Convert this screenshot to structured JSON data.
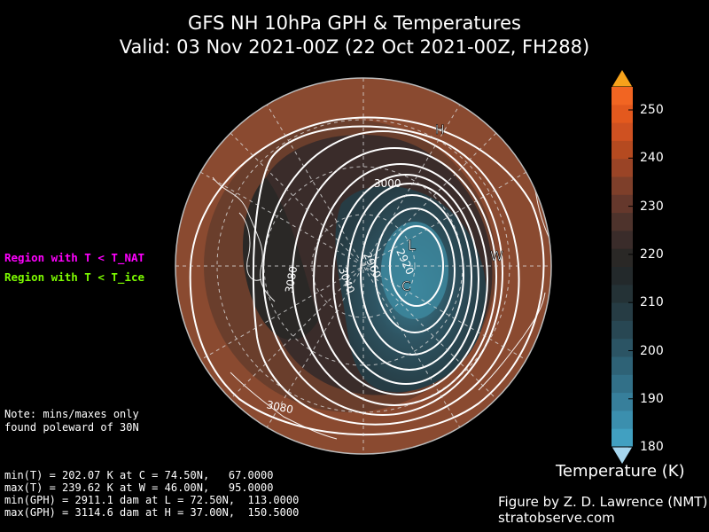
{
  "title_line1": "GFS NH 10hPa GPH & Temperatures",
  "title_line2": "Valid: 03 Nov 2021-00Z  (22 Oct 2021-00Z, FH288)",
  "legend": {
    "nat_label": "Region with T < T_NAT",
    "nat_color": "#ff00ff",
    "ice_label": "Region with T < T_ice",
    "ice_color": "#7cfc00"
  },
  "note": {
    "line1": "Note: mins/maxes only",
    "line2": "found poleward of 30N"
  },
  "stats": {
    "line1": "min(T) = 202.07 K at C = 74.50N,   67.0000",
    "line2": "max(T) = 239.62 K at W = 46.00N,   95.0000",
    "line3": "min(GPH) = 2911.1 dam at L = 72.50N,  113.0000",
    "line4": "max(GPH) = 3114.6 dam at H = 37.00N,  150.5000"
  },
  "credit": {
    "line1": "Figure by Z. D. Lawrence (NMT)",
    "line2": "stratobserve.com"
  },
  "colorbar": {
    "title": "Temperature (K)",
    "ticks": [
      "250",
      "240",
      "230",
      "220",
      "210",
      "200",
      "190",
      "180"
    ],
    "colors": [
      "#f26522",
      "#e3591e",
      "#cf5121",
      "#b54a20",
      "#9a4426",
      "#7e3f2a",
      "#65382c",
      "#4e332c",
      "#3a2c2a",
      "#2a2826",
      "#23292b",
      "#243236",
      "#263c44",
      "#284753",
      "#2b5464",
      "#2e6276",
      "#327088",
      "#377f9b",
      "#3b8fae",
      "#41a0c1"
    ],
    "over_color": "#f7a21b",
    "under_color": "#a6d6ee"
  },
  "map": {
    "markers": {
      "H": "H",
      "L": "L",
      "C": "C",
      "W": "W"
    },
    "contour_labels": [
      "3000",
      "2960",
      "2920",
      "3040",
      "3080",
      "3080"
    ],
    "colors": {
      "warm": "#8a4a30",
      "mid": "#4a3530",
      "dark": "#2a2826",
      "cold": "#2e5462",
      "coldest": "#3b7f94"
    }
  }
}
